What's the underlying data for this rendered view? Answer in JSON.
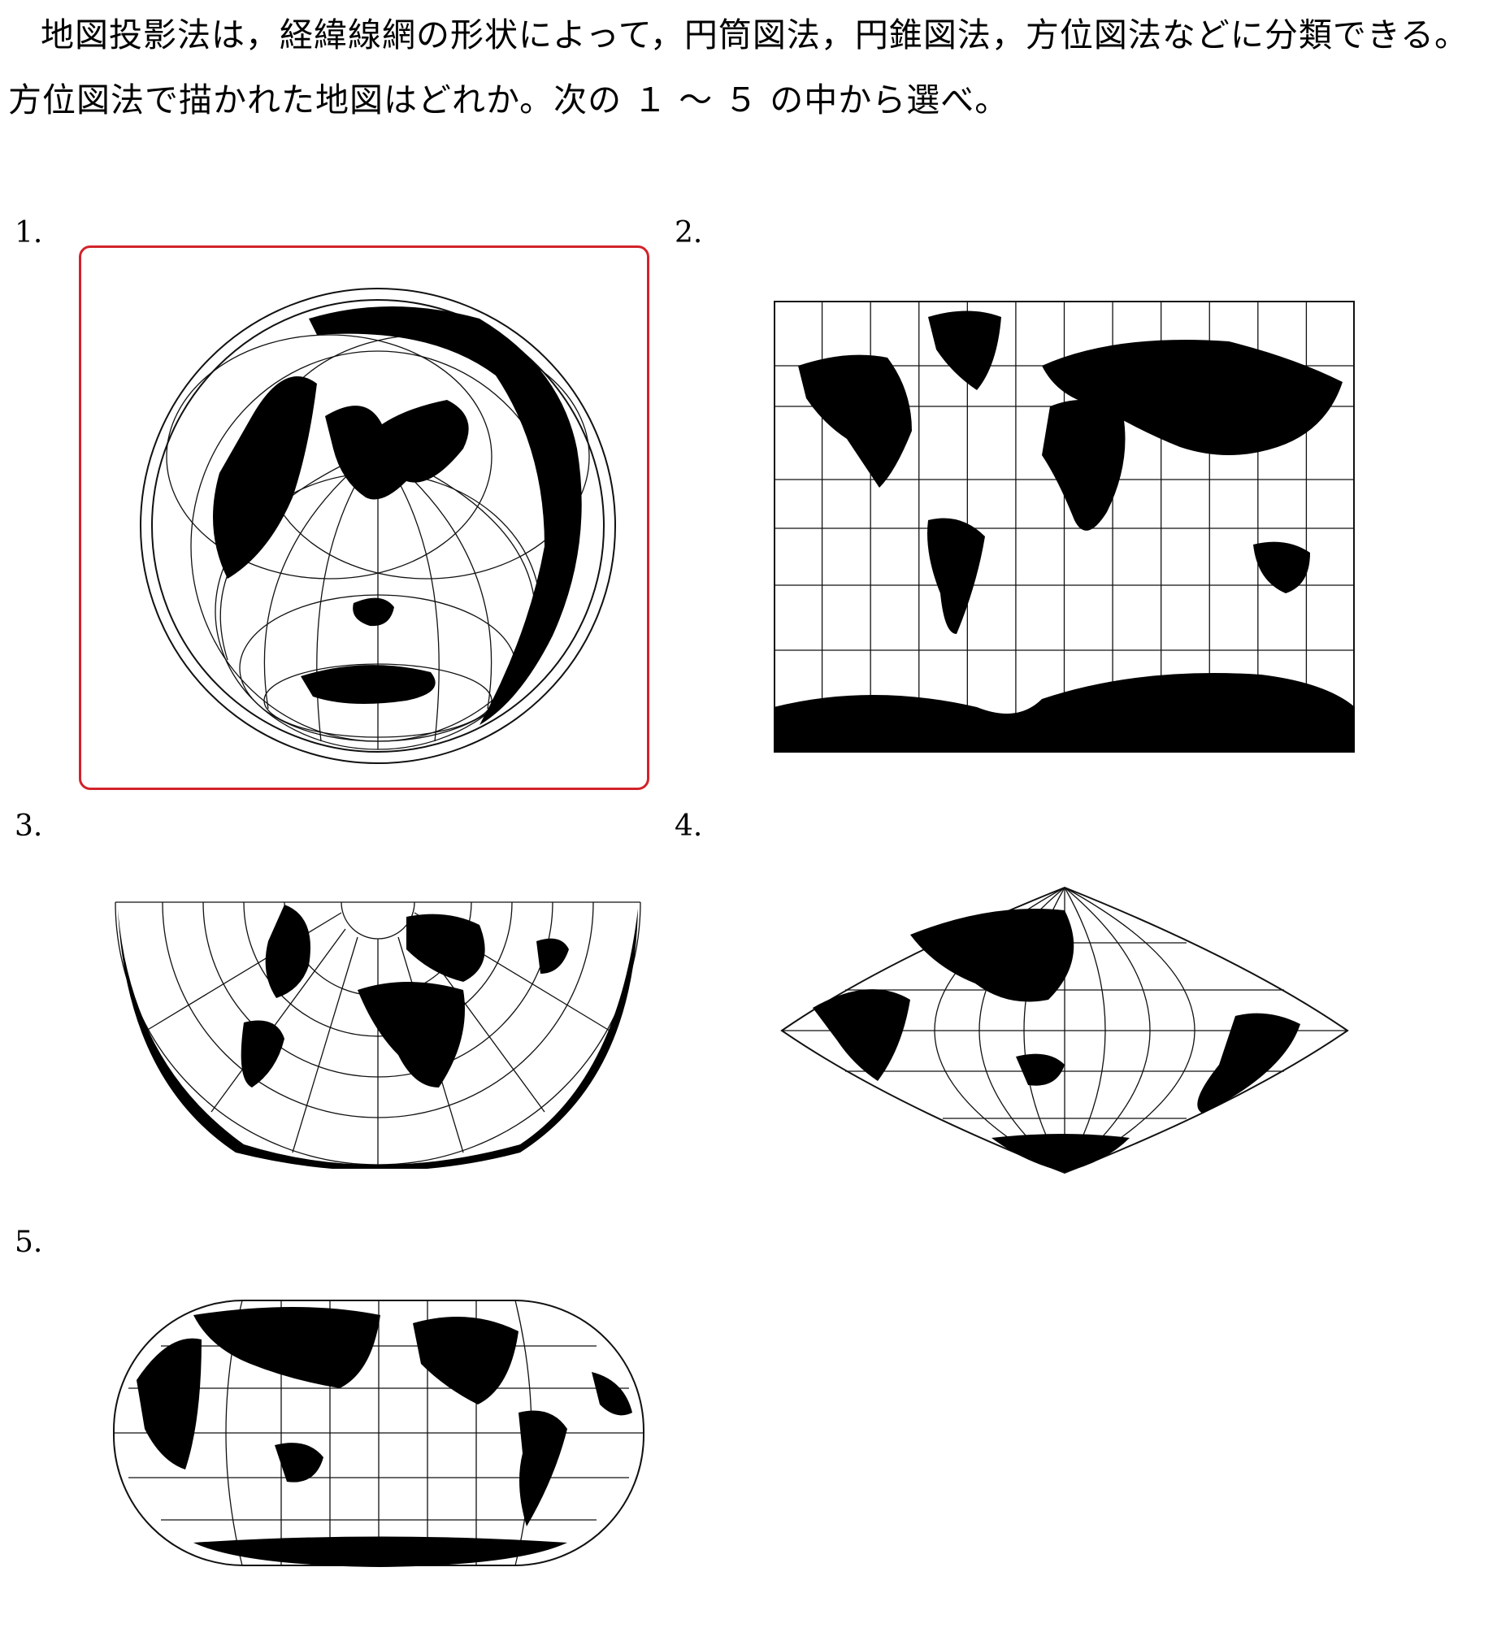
{
  "question": {
    "line1": "地図投影法は，経緯線網の形状によって，円筒図法，円錐図法，方位図法などに分類できる。",
    "line2": "方位図法で描かれた地図はどれか。次の １ ～ ５ の中から選べ。"
  },
  "options": [
    {
      "number": "1.",
      "selected": true
    },
    {
      "number": "2.",
      "selected": false
    },
    {
      "number": "3.",
      "selected": false
    },
    {
      "number": "4.",
      "selected": false
    },
    {
      "number": "5.",
      "selected": false
    }
  ],
  "colors": {
    "selection": "#d2232a",
    "land": "#000000",
    "grid": "#111111"
  }
}
